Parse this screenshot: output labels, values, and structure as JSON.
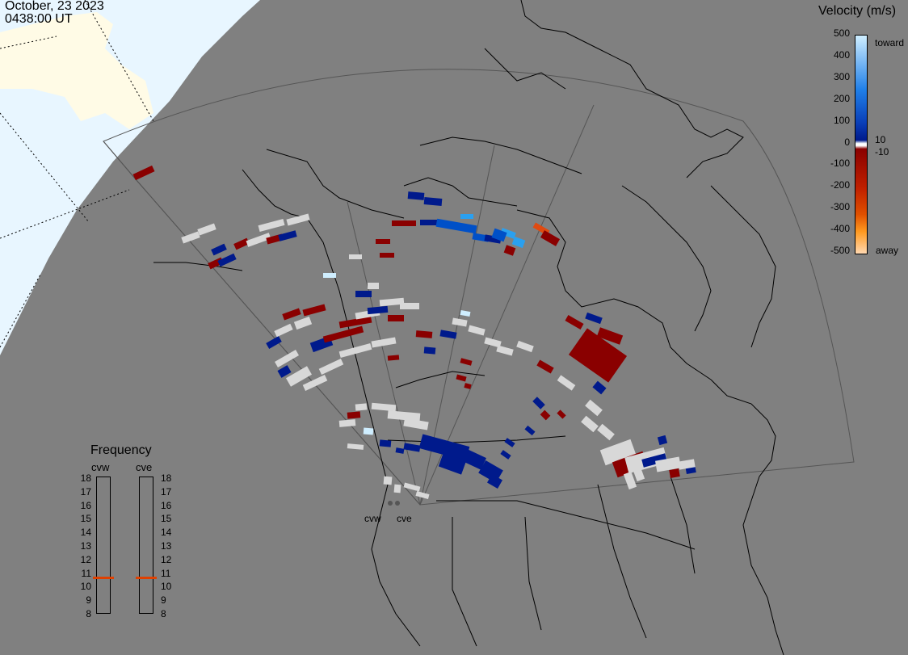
{
  "header": {
    "date": "October, 23 2023",
    "time": "0438:00 UT"
  },
  "velocity_legend": {
    "title": "Velocity (m/s)",
    "ticks": [
      "500",
      "400",
      "300",
      "200",
      "100",
      "0",
      "-100",
      "-200",
      "-300",
      "-400",
      "-500"
    ],
    "inner_ticks": [
      "10",
      "-10"
    ],
    "toward_label": "toward",
    "away_label": "away",
    "colors": {
      "toward_high": "#cfeeff",
      "toward_mid": "#1f7fe8",
      "toward_low": "#001a8c",
      "away_low": "#8a0000",
      "away_mid": "#e05000",
      "away_high": "#ffd8b0",
      "ground_scatter": "#d8d8d8"
    }
  },
  "frequency_legend": {
    "title": "Frequency",
    "columns": [
      "cvw",
      "cve"
    ],
    "scale": [
      "18",
      "17",
      "16",
      "15",
      "14",
      "13",
      "12",
      "11",
      "10",
      "9",
      "8"
    ],
    "values_mhz": {
      "cvw": 10.7,
      "cve": 10.7
    }
  },
  "radars": [
    "cvw",
    "cve"
  ],
  "map_colors": {
    "background": "#808080",
    "sunlit": "#e8f6ff",
    "land_highlight": "#fffbe6"
  }
}
